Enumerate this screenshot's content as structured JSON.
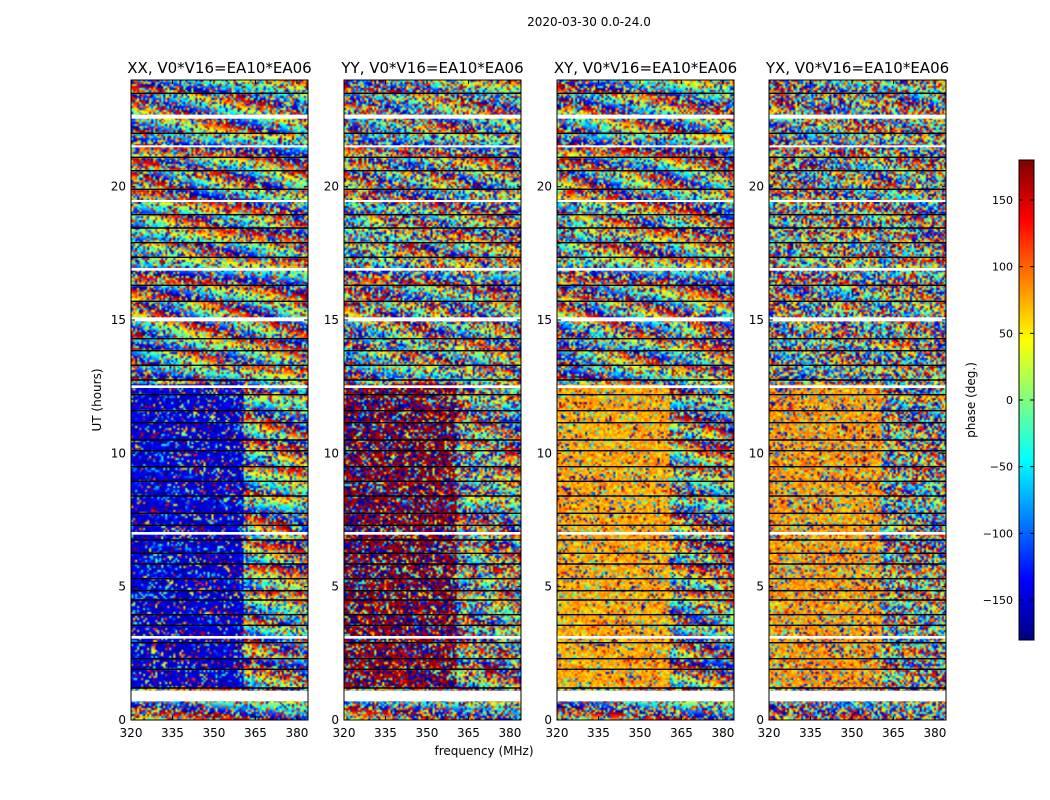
{
  "figure": {
    "suptitle": "2020-03-30 0.0-24.0",
    "xlabel": "frequency (MHz)",
    "ylabel": "UT (hours)"
  },
  "chart_data": [
    {
      "type": "heatmap",
      "title": "XX, V0*V16=EA10*EA06",
      "x_range_mhz": [
        320,
        384
      ],
      "y_range_hours": [
        0,
        24
      ],
      "xticks": [
        320,
        335,
        350,
        365,
        380
      ],
      "yticks": [
        0,
        5,
        10,
        15,
        20
      ],
      "dominant_phase_deg": -150,
      "noise_level": 0.55,
      "coherent_low_band": true
    },
    {
      "type": "heatmap",
      "title": "YY, V0*V16=EA10*EA06",
      "x_range_mhz": [
        320,
        384
      ],
      "y_range_hours": [
        0,
        24
      ],
      "xticks": [
        320,
        335,
        350,
        365,
        380
      ],
      "yticks": [
        0,
        5,
        10,
        15,
        20
      ],
      "dominant_phase_deg": 175,
      "noise_level": 0.7,
      "coherent_low_band": true
    },
    {
      "type": "heatmap",
      "title": "XY, V0*V16=EA10*EA06",
      "x_range_mhz": [
        320,
        384
      ],
      "y_range_hours": [
        0,
        24
      ],
      "xticks": [
        320,
        335,
        350,
        365,
        380
      ],
      "yticks": [
        0,
        5,
        10,
        15,
        20
      ],
      "dominant_phase_deg": 75,
      "noise_level": 0.6,
      "coherent_low_band": true
    },
    {
      "type": "heatmap",
      "title": "YX, V0*V16=EA10*EA06",
      "x_range_mhz": [
        320,
        384
      ],
      "y_range_hours": [
        0,
        24
      ],
      "xticks": [
        320,
        335,
        350,
        365,
        380
      ],
      "yticks": [
        0,
        5,
        10,
        15,
        20
      ],
      "dominant_phase_deg": 80,
      "noise_level": 0.8,
      "coherent_low_band": true
    }
  ],
  "colorbar": {
    "label": "phase (deg.)",
    "range": [
      -180,
      180
    ],
    "ticks": [
      150,
      100,
      50,
      0,
      -50,
      -100,
      -150
    ],
    "tick_labels": [
      "150",
      "100",
      "50",
      "0",
      "−50",
      "−100",
      "−150"
    ],
    "colormap": "jet",
    "jet_stops": [
      "#000080",
      "#0000ff",
      "#0080ff",
      "#00ffff",
      "#80ff80",
      "#ffff00",
      "#ff8000",
      "#ff0000",
      "#800000"
    ]
  },
  "flagged_hours": [
    [
      0.7,
      1.1
    ],
    [
      3.05,
      3.15
    ],
    [
      6.95,
      7.05
    ],
    [
      12.45,
      12.55
    ],
    [
      14.95,
      15.1
    ],
    [
      16.85,
      16.95
    ],
    [
      19.45,
      19.5
    ],
    [
      21.5,
      21.55
    ],
    [
      22.55,
      22.7
    ]
  ],
  "scan_boundaries_hours": [
    1.2,
    1.9,
    2.3,
    2.9,
    3.55,
    3.95,
    4.5,
    4.85,
    5.3,
    5.85,
    6.25,
    6.75,
    7.3,
    7.75,
    8.4,
    8.95,
    9.5,
    10.1,
    10.5,
    11.15,
    11.6,
    12.2,
    12.75,
    13.3,
    13.85,
    14.3,
    15.7,
    16.3,
    17.35,
    17.9,
    18.45,
    18.95,
    19.9,
    20.6,
    21.1,
    22.0,
    23.5
  ]
}
